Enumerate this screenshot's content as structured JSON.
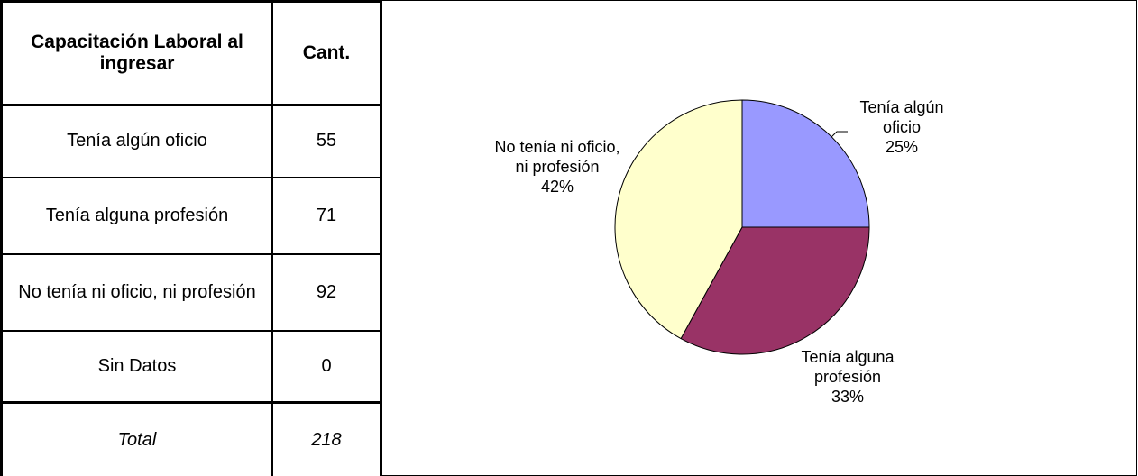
{
  "table": {
    "header": [
      "Capacitación Laboral al ingresar",
      "Cant."
    ],
    "rows": [
      [
        "Tenía algún oficio",
        55
      ],
      [
        "Tenía alguna profesión",
        71
      ],
      [
        "No tenía ni oficio, ni profesión",
        92
      ],
      [
        "Sin Datos",
        0
      ]
    ],
    "total": [
      "Total",
      218
    ]
  },
  "chart_data": {
    "type": "pie",
    "categories": [
      "Tenía algún oficio",
      "Tenía alguna profesión",
      "No tenía ni oficio, ni profesión"
    ],
    "values": [
      25,
      33,
      42
    ],
    "value_labels": [
      "25%",
      "33%",
      "42%"
    ],
    "colors": [
      "#9999ff",
      "#993366",
      "#ffffcc"
    ]
  }
}
